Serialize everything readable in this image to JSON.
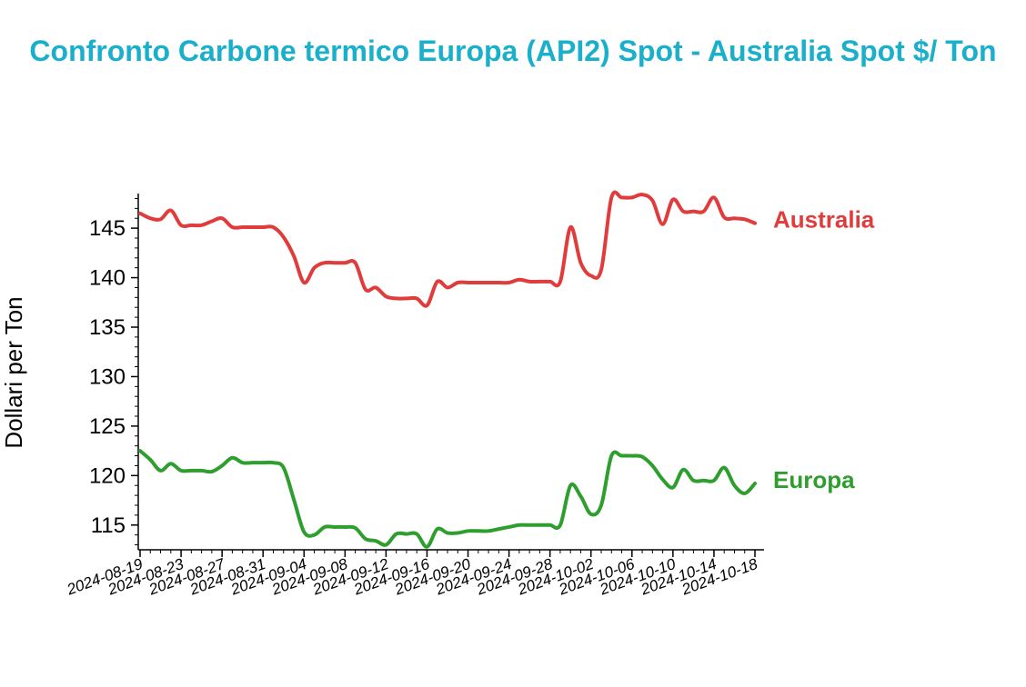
{
  "chart_data": {
    "type": "line",
    "title": "Confronto Carbone termico Europa (API2) Spot - Australia Spot $/ Ton",
    "ylabel": "Dollari per Ton",
    "xlabel": "",
    "ylim": [
      112.5,
      148.5
    ],
    "yticks": [
      115,
      120,
      125,
      130,
      135,
      140,
      145
    ],
    "xrange": [
      "2024-08-19",
      "2024-10-18"
    ],
    "xticks": [
      "2024-08-19",
      "2024-08-23",
      "2024-08-27",
      "2024-08-31",
      "2024-09-04",
      "2024-09-08",
      "2024-09-12",
      "2024-09-16",
      "2024-09-20",
      "2024-09-24",
      "2024-09-28",
      "2024-10-02",
      "2024-10-06",
      "2024-10-10",
      "2024-10-14",
      "2024-10-18"
    ],
    "grid": false,
    "legend": "inline-right",
    "series": [
      {
        "name": "Australia",
        "color": "#e03c3c",
        "points": [
          [
            "2024-08-19",
            146.5
          ],
          [
            "2024-08-20",
            146.0
          ],
          [
            "2024-08-21",
            145.9
          ],
          [
            "2024-08-22",
            146.8
          ],
          [
            "2024-08-23",
            145.3
          ],
          [
            "2024-08-24",
            145.3
          ],
          [
            "2024-08-25",
            145.3
          ],
          [
            "2024-08-26",
            145.7
          ],
          [
            "2024-08-27",
            146.0
          ],
          [
            "2024-08-28",
            145.1
          ],
          [
            "2024-08-29",
            145.1
          ],
          [
            "2024-08-30",
            145.1
          ],
          [
            "2024-08-31",
            145.1
          ],
          [
            "2024-09-01",
            145.1
          ],
          [
            "2024-09-02",
            144.1
          ],
          [
            "2024-09-03",
            142.2
          ],
          [
            "2024-09-04",
            139.5
          ],
          [
            "2024-09-05",
            141.0
          ],
          [
            "2024-09-06",
            141.5
          ],
          [
            "2024-09-07",
            141.5
          ],
          [
            "2024-09-08",
            141.5
          ],
          [
            "2024-09-09",
            141.5
          ],
          [
            "2024-09-10",
            138.8
          ],
          [
            "2024-09-11",
            139.0
          ],
          [
            "2024-09-12",
            138.1
          ],
          [
            "2024-09-13",
            137.9
          ],
          [
            "2024-09-14",
            137.9
          ],
          [
            "2024-09-15",
            137.9
          ],
          [
            "2024-09-16",
            137.2
          ],
          [
            "2024-09-17",
            139.6
          ],
          [
            "2024-09-18",
            139.0
          ],
          [
            "2024-09-19",
            139.5
          ],
          [
            "2024-09-20",
            139.5
          ],
          [
            "2024-09-21",
            139.5
          ],
          [
            "2024-09-22",
            139.5
          ],
          [
            "2024-09-23",
            139.5
          ],
          [
            "2024-09-24",
            139.5
          ],
          [
            "2024-09-25",
            139.8
          ],
          [
            "2024-09-26",
            139.6
          ],
          [
            "2024-09-27",
            139.6
          ],
          [
            "2024-09-28",
            139.6
          ],
          [
            "2024-09-29",
            139.6
          ],
          [
            "2024-09-30",
            145.1
          ],
          [
            "2024-10-01",
            141.5
          ],
          [
            "2024-10-02",
            140.2
          ],
          [
            "2024-10-03",
            140.8
          ],
          [
            "2024-10-04",
            148.1
          ],
          [
            "2024-10-05",
            148.1
          ],
          [
            "2024-10-06",
            148.1
          ],
          [
            "2024-10-07",
            148.4
          ],
          [
            "2024-10-08",
            147.8
          ],
          [
            "2024-10-09",
            145.4
          ],
          [
            "2024-10-10",
            147.9
          ],
          [
            "2024-10-11",
            146.7
          ],
          [
            "2024-10-12",
            146.7
          ],
          [
            "2024-10-13",
            146.7
          ],
          [
            "2024-10-14",
            148.1
          ],
          [
            "2024-10-15",
            146.1
          ],
          [
            "2024-10-16",
            146.0
          ],
          [
            "2024-10-17",
            145.9
          ],
          [
            "2024-10-18",
            145.5
          ]
        ]
      },
      {
        "name": "Europa",
        "color": "#2e9e2e",
        "points": [
          [
            "2024-08-19",
            122.5
          ],
          [
            "2024-08-20",
            121.6
          ],
          [
            "2024-08-21",
            120.5
          ],
          [
            "2024-08-22",
            121.2
          ],
          [
            "2024-08-23",
            120.5
          ],
          [
            "2024-08-24",
            120.5
          ],
          [
            "2024-08-25",
            120.5
          ],
          [
            "2024-08-26",
            120.4
          ],
          [
            "2024-08-27",
            121.0
          ],
          [
            "2024-08-28",
            121.8
          ],
          [
            "2024-08-29",
            121.3
          ],
          [
            "2024-08-30",
            121.3
          ],
          [
            "2024-08-31",
            121.3
          ],
          [
            "2024-09-01",
            121.3
          ],
          [
            "2024-09-02",
            120.8
          ],
          [
            "2024-09-03",
            117.6
          ],
          [
            "2024-09-04",
            114.3
          ],
          [
            "2024-09-05",
            114.0
          ],
          [
            "2024-09-06",
            114.8
          ],
          [
            "2024-09-07",
            114.8
          ],
          [
            "2024-09-08",
            114.8
          ],
          [
            "2024-09-09",
            114.7
          ],
          [
            "2024-09-10",
            113.6
          ],
          [
            "2024-09-11",
            113.4
          ],
          [
            "2024-09-12",
            113.0
          ],
          [
            "2024-09-13",
            114.1
          ],
          [
            "2024-09-14",
            114.1
          ],
          [
            "2024-09-15",
            114.1
          ],
          [
            "2024-09-16",
            112.8
          ],
          [
            "2024-09-17",
            114.6
          ],
          [
            "2024-09-18",
            114.2
          ],
          [
            "2024-09-19",
            114.2
          ],
          [
            "2024-09-20",
            114.4
          ],
          [
            "2024-09-21",
            114.4
          ],
          [
            "2024-09-22",
            114.4
          ],
          [
            "2024-09-23",
            114.6
          ],
          [
            "2024-09-24",
            114.8
          ],
          [
            "2024-09-25",
            115.0
          ],
          [
            "2024-09-26",
            115.0
          ],
          [
            "2024-09-27",
            115.0
          ],
          [
            "2024-09-28",
            115.0
          ],
          [
            "2024-09-29",
            115.0
          ],
          [
            "2024-09-30",
            119.0
          ],
          [
            "2024-10-01",
            117.9
          ],
          [
            "2024-10-02",
            116.1
          ],
          [
            "2024-10-03",
            117.0
          ],
          [
            "2024-10-04",
            122.0
          ],
          [
            "2024-10-05",
            122.0
          ],
          [
            "2024-10-06",
            122.0
          ],
          [
            "2024-10-07",
            121.9
          ],
          [
            "2024-10-08",
            121.0
          ],
          [
            "2024-10-09",
            119.6
          ],
          [
            "2024-10-10",
            118.8
          ],
          [
            "2024-10-11",
            120.6
          ],
          [
            "2024-10-12",
            119.5
          ],
          [
            "2024-10-13",
            119.5
          ],
          [
            "2024-10-14",
            119.5
          ],
          [
            "2024-10-15",
            120.8
          ],
          [
            "2024-10-16",
            119.0
          ],
          [
            "2024-10-17",
            118.2
          ],
          [
            "2024-10-18",
            119.2
          ]
        ]
      }
    ]
  }
}
